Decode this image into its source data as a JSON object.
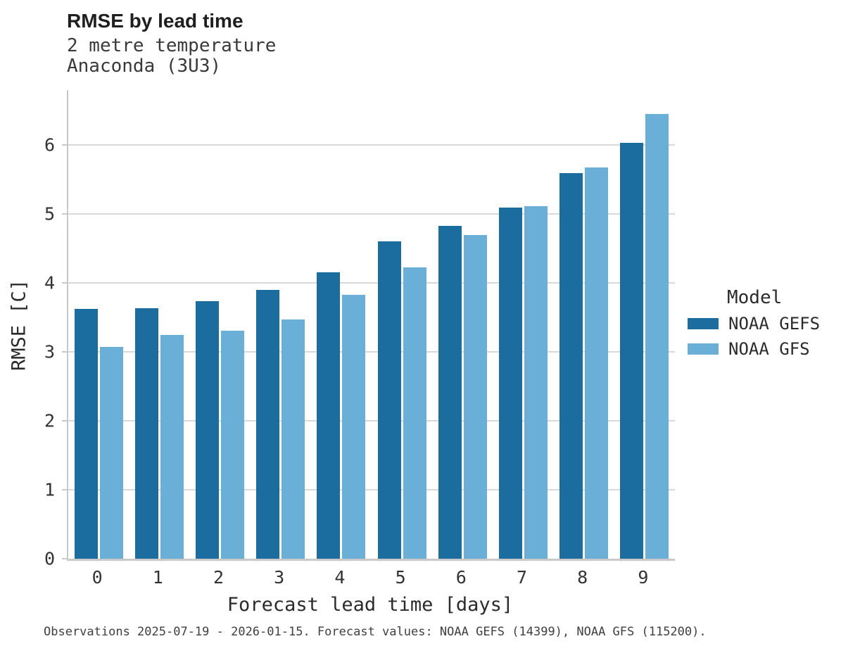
{
  "header": {
    "title": "RMSE by lead time",
    "subtitle_line1": "2 metre temperature",
    "subtitle_line2": "Anaconda (3U3)"
  },
  "chart_data": {
    "type": "bar",
    "title": "RMSE by lead time",
    "subtitle": [
      "2 metre temperature",
      "Anaconda (3U3)"
    ],
    "categories": [
      "0",
      "1",
      "2",
      "3",
      "4",
      "5",
      "6",
      "7",
      "8",
      "9"
    ],
    "series": [
      {
        "name": "NOAA GEFS",
        "color": "#1a6d9e",
        "values": [
          3.62,
          3.63,
          3.74,
          3.9,
          4.16,
          4.61,
          4.83,
          5.1,
          5.6,
          6.03
        ]
      },
      {
        "name": "NOAA GFS",
        "color": "#69afd7",
        "values": [
          3.07,
          3.25,
          3.31,
          3.47,
          3.83,
          4.23,
          4.7,
          5.12,
          5.68,
          6.45
        ]
      }
    ],
    "xlabel": "Forecast lead time [days]",
    "ylabel": "RMSE [C]",
    "ylim": [
      0,
      6.8
    ],
    "yticks": [
      0,
      1,
      2,
      3,
      4,
      5,
      6
    ],
    "grid": true,
    "legend_title": "Model",
    "legend_position": "right"
  },
  "legend": {
    "title": "Model",
    "items": [
      {
        "label": "NOAA GEFS",
        "color": "#1a6d9e"
      },
      {
        "label": "NOAA GFS",
        "color": "#69afd7"
      }
    ]
  },
  "footer": {
    "note": "Observations 2025-07-19 - 2026-01-15. Forecast values: NOAA GEFS (14399), NOAA GFS (115200)."
  }
}
